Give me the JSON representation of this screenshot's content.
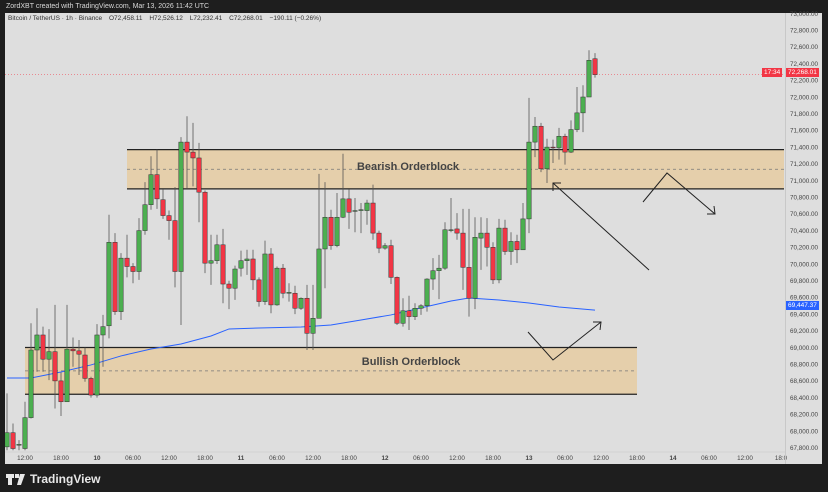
{
  "topbar": {
    "text": "ZordXBT created with TradingView.com, Mar 13, 2026 11:42 UTC"
  },
  "legend": {
    "symbol": "Bitcoin / TetherUS · 1h · Binance",
    "open": "O72,458.11",
    "high": "H72,526.12",
    "low": "L72,232.41",
    "close": "C72,268.01",
    "change": "−190.11 (−0.26%)"
  },
  "price_tags": {
    "last_price": "72,268.01",
    "countdown": "17:34",
    "ema_value": "69,447.37"
  },
  "zones": {
    "bearish": {
      "label": "Bearish Orderblock",
      "top": 71370,
      "bottom": 70900,
      "start": "03-10 05:00",
      "end": "03-14 22:00"
    },
    "bullish": {
      "label": "Bullish Orderblock",
      "top": 69000,
      "bottom": 68440,
      "start": "03-09 12:00",
      "end": "03-13 18:00"
    }
  },
  "logo": {
    "text": "TradingView"
  },
  "colors": {
    "up": "#4caf50",
    "down": "#f23645",
    "ema": "#2962ff",
    "zone": "#e5cfab",
    "background": "#dedede",
    "last_price": "#f23645"
  },
  "chart_data": {
    "type": "candlestick",
    "title": "",
    "ylim": [
      67700,
      73000
    ],
    "y_ticks": [
      "73,000.00",
      "72,800.00",
      "72,600.00",
      "72,400.00",
      "72,200.00",
      "72,000.00",
      "71,800.00",
      "71,600.00",
      "71,400.00",
      "71,200.00",
      "71,000.00",
      "70,800.00",
      "70,600.00",
      "70,400.00",
      "70,200.00",
      "70,000.00",
      "69,800.00",
      "69,600.00",
      "69,400.00",
      "69,200.00",
      "69,000.00",
      "68,800.00",
      "68,600.00",
      "68,400.00",
      "68,200.00",
      "68,000.00",
      "67,800.00"
    ],
    "x_ticks": [
      {
        "t": "03-09 12:00",
        "label": "12:00"
      },
      {
        "t": "03-09 18:00",
        "label": "18:00"
      },
      {
        "t": "03-10 00:00",
        "label": "10",
        "bold": true
      },
      {
        "t": "03-10 06:00",
        "label": "06:00"
      },
      {
        "t": "03-10 12:00",
        "label": "12:00"
      },
      {
        "t": "03-10 18:00",
        "label": "18:00"
      },
      {
        "t": "03-11 00:00",
        "label": "11",
        "bold": true
      },
      {
        "t": "03-11 06:00",
        "label": "06:00"
      },
      {
        "t": "03-11 12:00",
        "label": "12:00"
      },
      {
        "t": "03-11 18:00",
        "label": "18:00"
      },
      {
        "t": "03-12 00:00",
        "label": "12",
        "bold": true
      },
      {
        "t": "03-12 06:00",
        "label": "06:00"
      },
      {
        "t": "03-12 12:00",
        "label": "12:00"
      },
      {
        "t": "03-12 18:00",
        "label": "18:00"
      },
      {
        "t": "03-13 00:00",
        "label": "13",
        "bold": true
      },
      {
        "t": "03-13 06:00",
        "label": "06:00"
      },
      {
        "t": "03-13 12:00",
        "label": "12:00"
      },
      {
        "t": "03-13 18:00",
        "label": "18:00"
      },
      {
        "t": "03-14 00:00",
        "label": "14",
        "bold": true
      },
      {
        "t": "03-14 06:00",
        "label": "06:00"
      },
      {
        "t": "03-14 12:00",
        "label": "12:00"
      },
      {
        "t": "03-14 18:00",
        "label": "18:0"
      }
    ],
    "candle_fields": [
      "time",
      "open",
      "high",
      "low",
      "close"
    ],
    "candles": [
      [
        "03-09 09:00",
        67810,
        68450,
        67770,
        67980
      ],
      [
        "03-09 10:00",
        67980,
        68090,
        67770,
        67790
      ],
      [
        "03-09 11:00",
        67830,
        67890,
        67770,
        67840
      ],
      [
        "03-09 12:00",
        67790,
        68350,
        67770,
        68160
      ],
      [
        "03-09 13:00",
        68160,
        69290,
        68150,
        68970
      ],
      [
        "03-09 14:00",
        68970,
        69470,
        68710,
        69150
      ],
      [
        "03-09 15:00",
        69150,
        69250,
        68710,
        68860
      ],
      [
        "03-09 16:00",
        68860,
        69220,
        68610,
        68950
      ],
      [
        "03-09 17:00",
        68950,
        69510,
        68270,
        68600
      ],
      [
        "03-09 18:00",
        68600,
        68700,
        68180,
        68350
      ],
      [
        "03-09 19:00",
        68350,
        69510,
        68350,
        68980
      ],
      [
        "03-09 20:00",
        68980,
        69120,
        68770,
        68960
      ],
      [
        "03-09 21:00",
        68960,
        69090,
        68670,
        68920
      ],
      [
        "03-09 22:00",
        68910,
        69000,
        68590,
        68630
      ],
      [
        "03-09 23:00",
        68630,
        68650,
        68400,
        68430
      ],
      [
        "03-10 00:00",
        68430,
        69280,
        68400,
        69150
      ],
      [
        "03-10 01:00",
        69150,
        69390,
        68770,
        69250
      ],
      [
        "03-10 02:00",
        69260,
        70590,
        69110,
        70260
      ],
      [
        "03-10 03:00",
        70260,
        70370,
        69390,
        69430
      ],
      [
        "03-10 04:00",
        69430,
        70130,
        69330,
        70070
      ],
      [
        "03-10 05:00",
        70070,
        70350,
        69840,
        69970
      ],
      [
        "03-10 06:00",
        69970,
        70010,
        69770,
        69910
      ],
      [
        "03-10 07:00",
        69910,
        70550,
        69810,
        70400
      ],
      [
        "03-10 08:00",
        70400,
        70980,
        70350,
        70710
      ],
      [
        "03-10 09:00",
        70710,
        71290,
        70650,
        71070
      ],
      [
        "03-10 10:00",
        71070,
        71370,
        70660,
        70780
      ],
      [
        "03-10 11:00",
        70770,
        70890,
        70540,
        70580
      ],
      [
        "03-10 12:00",
        70580,
        70640,
        70290,
        70520
      ],
      [
        "03-10 13:00",
        70520,
        70920,
        69720,
        69910
      ],
      [
        "03-10 14:00",
        69910,
        71520,
        69270,
        71460
      ],
      [
        "03-10 15:00",
        71460,
        71770,
        70910,
        71340
      ],
      [
        "03-10 16:00",
        71340,
        71690,
        70930,
        71270
      ],
      [
        "03-10 17:00",
        71270,
        71450,
        70500,
        70860
      ],
      [
        "03-10 18:00",
        70860,
        70880,
        69890,
        70010
      ],
      [
        "03-10 19:00",
        70010,
        70350,
        69750,
        70040
      ],
      [
        "03-10 20:00",
        70040,
        70350,
        70000,
        70230
      ],
      [
        "03-10 21:00",
        70230,
        70420,
        69530,
        69760
      ],
      [
        "03-10 22:00",
        69760,
        69800,
        69460,
        69710
      ],
      [
        "03-10 23:00",
        69710,
        69980,
        69570,
        69940
      ],
      [
        "03-11 00:00",
        69950,
        70160,
        69850,
        70040
      ],
      [
        "03-11 01:00",
        70040,
        70170,
        69870,
        70060
      ],
      [
        "03-11 02:00",
        70060,
        70170,
        69690,
        69810
      ],
      [
        "03-11 03:00",
        69810,
        69840,
        69490,
        69550
      ],
      [
        "03-11 04:00",
        69550,
        70280,
        69510,
        70120
      ],
      [
        "03-11 05:00",
        70120,
        70190,
        69410,
        69510
      ],
      [
        "03-11 06:00",
        69510,
        69970,
        69500,
        69950
      ],
      [
        "03-11 07:00",
        69950,
        70000,
        69590,
        69650
      ],
      [
        "03-11 08:00",
        69650,
        69770,
        69550,
        69660
      ],
      [
        "03-11 09:00",
        69650,
        69740,
        69400,
        69470
      ],
      [
        "03-11 10:00",
        69470,
        69600,
        69450,
        69590
      ],
      [
        "03-11 11:00",
        69590,
        69750,
        68970,
        69170
      ],
      [
        "03-11 12:00",
        69170,
        69750,
        68970,
        69350
      ],
      [
        "03-11 13:00",
        69350,
        71080,
        69350,
        70180
      ],
      [
        "03-11 14:00",
        70180,
        70980,
        69710,
        70560
      ],
      [
        "03-11 15:00",
        70560,
        70650,
        70170,
        70220
      ],
      [
        "03-11 16:00",
        70220,
        70850,
        70200,
        70560
      ],
      [
        "03-11 17:00",
        70560,
        71320,
        70550,
        70780
      ],
      [
        "03-11 18:00",
        70780,
        70890,
        70420,
        70620
      ],
      [
        "03-11 19:00",
        70630,
        70790,
        70380,
        70640
      ],
      [
        "03-11 20:00",
        70640,
        70730,
        70370,
        70650
      ],
      [
        "03-11 21:00",
        70640,
        70770,
        70470,
        70730
      ],
      [
        "03-11 22:00",
        70730,
        70950,
        70290,
        70370
      ],
      [
        "03-11 23:00",
        70370,
        70400,
        70130,
        70190
      ],
      [
        "03-12 00:00",
        70190,
        70250,
        70170,
        70220
      ],
      [
        "03-12 01:00",
        70220,
        70290,
        69760,
        69840
      ],
      [
        "03-12 02:00",
        69840,
        69850,
        69270,
        69290
      ],
      [
        "03-12 03:00",
        69290,
        69590,
        69250,
        69440
      ],
      [
        "03-12 04:00",
        69440,
        69620,
        69210,
        69370
      ],
      [
        "03-12 05:00",
        69370,
        69530,
        69330,
        69470
      ],
      [
        "03-12 06:00",
        69470,
        69520,
        69390,
        69500
      ],
      [
        "03-12 07:00",
        69500,
        69830,
        69430,
        69820
      ],
      [
        "03-12 08:00",
        69820,
        70070,
        69690,
        69920
      ],
      [
        "03-12 09:00",
        69920,
        70110,
        69580,
        69950
      ],
      [
        "03-12 10:00",
        69950,
        70500,
        69930,
        70410
      ],
      [
        "03-12 11:00",
        70400,
        70790,
        70380,
        70410
      ],
      [
        "03-12 12:00",
        70420,
        70610,
        70290,
        70370
      ],
      [
        "03-12 13:00",
        70370,
        70660,
        69690,
        69960
      ],
      [
        "03-12 14:00",
        69960,
        70660,
        69370,
        69590
      ],
      [
        "03-12 15:00",
        69590,
        70560,
        69460,
        70320
      ],
      [
        "03-12 16:00",
        70310,
        70560,
        69930,
        70370
      ],
      [
        "03-12 17:00",
        70370,
        70550,
        69970,
        70200
      ],
      [
        "03-12 18:00",
        70200,
        70260,
        69760,
        69810
      ],
      [
        "03-12 19:00",
        69810,
        70540,
        69770,
        70430
      ],
      [
        "03-12 20:00",
        70430,
        70530,
        70110,
        70150
      ],
      [
        "03-12 21:00",
        70150,
        70380,
        69990,
        70270
      ],
      [
        "03-12 22:00",
        70270,
        70350,
        70010,
        70170
      ],
      [
        "03-12 23:00",
        70170,
        70730,
        70170,
        70540
      ],
      [
        "03-13 00:00",
        70540,
        71990,
        70370,
        71460
      ],
      [
        "03-13 01:00",
        71460,
        71760,
        71280,
        71650
      ],
      [
        "03-13 02:00",
        71650,
        71690,
        71100,
        71140
      ],
      [
        "03-13 03:00",
        71140,
        71500,
        70970,
        71400
      ],
      [
        "03-13 04:00",
        71400,
        71490,
        71210,
        71390
      ],
      [
        "03-13 05:00",
        71390,
        71630,
        71250,
        71530
      ],
      [
        "03-13 06:00",
        71530,
        71560,
        71190,
        71340
      ],
      [
        "03-13 07:00",
        71340,
        71720,
        71330,
        71610
      ],
      [
        "03-13 08:00",
        71610,
        72120,
        71580,
        71810
      ],
      [
        "03-13 09:00",
        71810,
        72140,
        71580,
        72000
      ],
      [
        "03-13 10:00",
        72000,
        72560,
        72000,
        72440
      ],
      [
        "03-13 11:00",
        72458.11,
        72526.12,
        72232.41,
        72268.01
      ]
    ],
    "ema": [
      [
        "03-09 09:00",
        68635
      ],
      [
        "03-09 13:00",
        68635
      ],
      [
        "03-09 18:00",
        68707
      ],
      [
        "03-09 23:00",
        68791
      ],
      [
        "03-10 04:00",
        68899
      ],
      [
        "03-10 09:00",
        68982
      ],
      [
        "03-10 14:00",
        69042
      ],
      [
        "03-10 19:00",
        69138
      ],
      [
        "03-10 22:00",
        69222
      ],
      [
        "03-11 03:00",
        69234
      ],
      [
        "03-11 10:00",
        69246
      ],
      [
        "03-11 15:00",
        69270
      ],
      [
        "03-11 20:00",
        69330
      ],
      [
        "03-12 01:00",
        69390
      ],
      [
        "03-12 06:00",
        69474
      ],
      [
        "03-12 11:00",
        69557
      ],
      [
        "03-12 14:00",
        69593
      ],
      [
        "03-12 19:00",
        69569
      ],
      [
        "03-13 00:00",
        69533
      ],
      [
        "03-13 05:00",
        69485
      ],
      [
        "03-13 11:00",
        69447.37
      ]
    ],
    "last_price": 72268.01
  }
}
